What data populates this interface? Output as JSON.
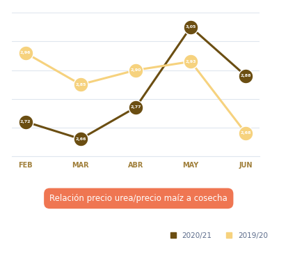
{
  "chart_data": {
    "type": "line",
    "title": "Relación precio urea/precio maíz a cosecha",
    "categories": [
      "FEB",
      "MAR",
      "ABR",
      "MAY",
      "JUN"
    ],
    "series": [
      {
        "name": "2020/21",
        "color": "#6b4e12",
        "marker": "circle",
        "values": [
          2.72,
          2.66,
          2.77,
          3.05,
          2.88
        ],
        "value_labels": [
          "2,72",
          "2,66",
          "2,77",
          "3,05",
          "2,88"
        ]
      },
      {
        "name": "2019/20",
        "color": "#f6d27e",
        "marker": "circle",
        "values": [
          2.96,
          2.85,
          2.9,
          2.93,
          2.68
        ],
        "value_labels": [
          "2,96",
          "2,85",
          "2,90",
          "2,93",
          "2,68"
        ]
      }
    ],
    "ylim": [
      2.6,
      3.1
    ],
    "yticks": [
      2.6,
      2.7,
      2.8,
      2.9,
      3.0,
      3.1
    ],
    "grid": true,
    "data_labels": true,
    "tick_labels": "x",
    "legend": "lower right"
  }
}
